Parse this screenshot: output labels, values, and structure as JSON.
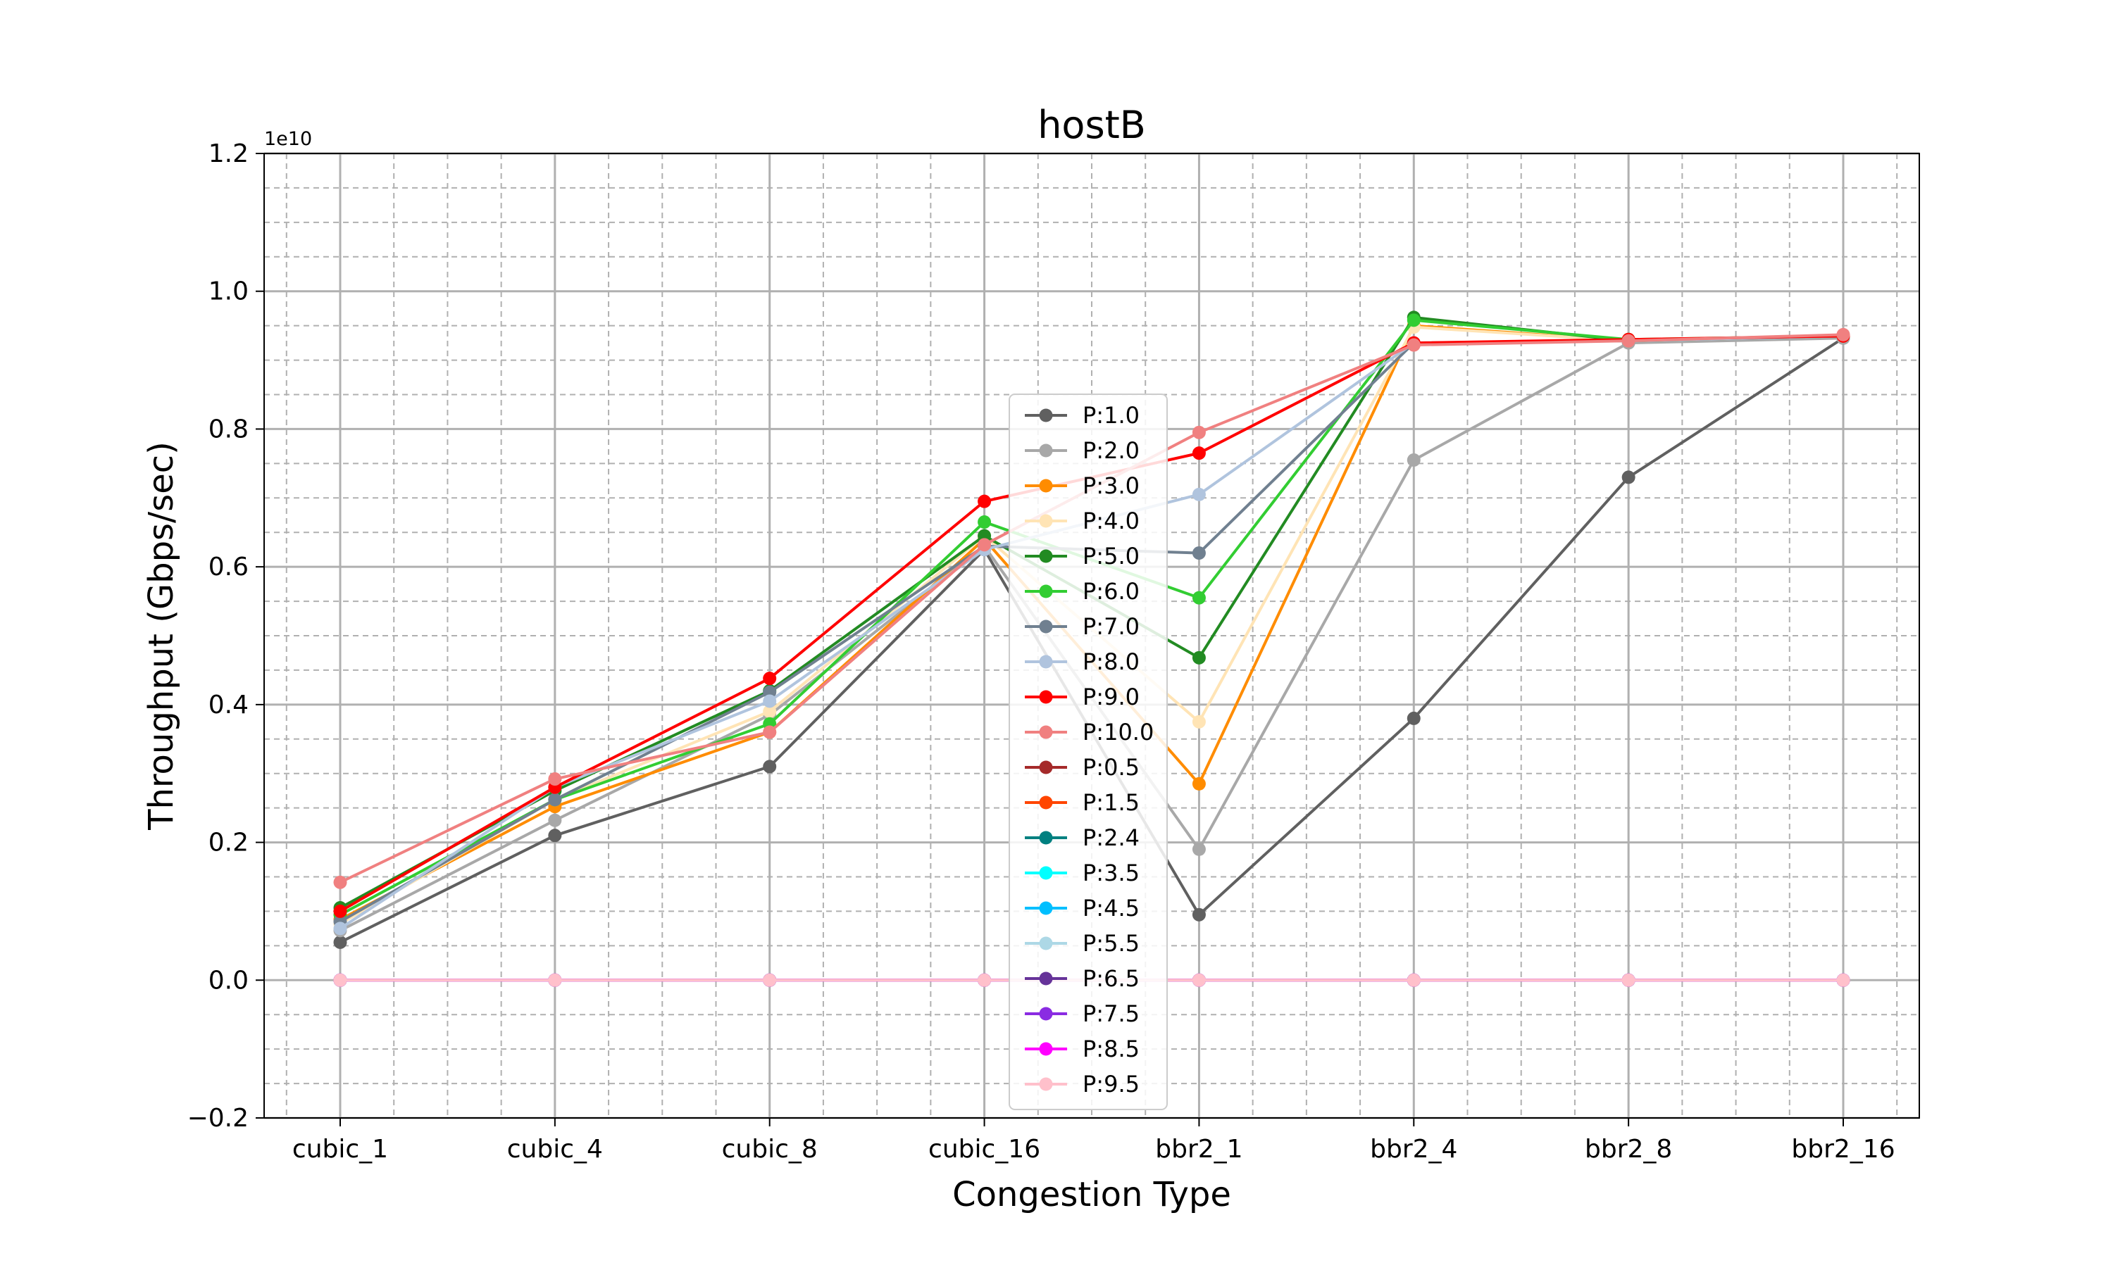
{
  "chart_data": {
    "type": "line",
    "title": "hostB",
    "xlabel": "Congestion Type",
    "ylabel": "Throughput (Gbps/sec)",
    "y_offset_label": "1e10",
    "categories": [
      "cubic_1",
      "cubic_4",
      "cubic_8",
      "cubic_16",
      "bbr2_1",
      "bbr2_4",
      "bbr2_8",
      "bbr2_16"
    ],
    "ylim": [
      -0.2,
      1.2
    ],
    "yticks": [
      -0.2,
      0.0,
      0.2,
      0.4,
      0.6,
      0.8,
      1.0,
      1.2
    ],
    "ytick_labels": [
      "−0.2",
      "0.0",
      "0.2",
      "0.4",
      "0.6",
      "0.8",
      "1.0",
      "1.2"
    ],
    "grid": "major and minor, dashed minor",
    "legend_position": "center",
    "series": [
      {
        "name": "P:1.0",
        "color": "#606060",
        "values": [
          0.055,
          0.21,
          0.31,
          0.625,
          0.095,
          0.38,
          0.73,
          0.932
        ]
      },
      {
        "name": "P:2.0",
        "color": "#a8a8a8",
        "values": [
          0.072,
          0.232,
          0.385,
          0.63,
          0.19,
          0.755,
          0.925,
          0.932
        ]
      },
      {
        "name": "P:3.0",
        "color": "#ff8c00",
        "values": [
          0.088,
          0.252,
          0.36,
          0.64,
          0.285,
          0.95,
          0.928,
          0.935
        ]
      },
      {
        "name": "P:4.0",
        "color": "#ffe4b5",
        "values": [
          0.082,
          0.262,
          0.39,
          0.645,
          0.375,
          0.948,
          0.928,
          0.935
        ]
      },
      {
        "name": "P:5.0",
        "color": "#228b22",
        "values": [
          0.105,
          0.275,
          0.42,
          0.645,
          0.468,
          0.962,
          0.928,
          0.935
        ]
      },
      {
        "name": "P:6.0",
        "color": "#32cd32",
        "values": [
          0.095,
          0.262,
          0.372,
          0.665,
          0.555,
          0.958,
          0.93,
          0.935
        ]
      },
      {
        "name": "P:7.0",
        "color": "#708090",
        "values": [
          0.085,
          0.262,
          0.418,
          0.63,
          0.62,
          0.925,
          0.928,
          0.935
        ]
      },
      {
        "name": "P:8.0",
        "color": "#b0c4de",
        "values": [
          0.075,
          0.28,
          0.405,
          0.625,
          0.705,
          0.925,
          0.928,
          0.935
        ]
      },
      {
        "name": "P:9.0",
        "color": "#ff0000",
        "values": [
          0.1,
          0.28,
          0.438,
          0.695,
          0.765,
          0.925,
          0.93,
          0.935
        ]
      },
      {
        "name": "P:10.0",
        "color": "#f08080",
        "values": [
          0.142,
          0.292,
          0.36,
          0.632,
          0.795,
          0.922,
          0.928,
          0.937
        ]
      },
      {
        "name": "P:0.5",
        "color": "#a52a2a",
        "values": [
          0,
          0,
          0,
          0,
          0,
          0,
          0,
          0
        ]
      },
      {
        "name": "P:1.5",
        "color": "#ff4500",
        "values": [
          0,
          0,
          0,
          0,
          0,
          0,
          0,
          0
        ]
      },
      {
        "name": "P:2.4",
        "color": "#008080",
        "values": [
          0,
          0,
          0,
          0,
          0,
          0,
          0,
          0
        ]
      },
      {
        "name": "P:3.5",
        "color": "#00ffff",
        "values": [
          0,
          0,
          0,
          0,
          0,
          0,
          0,
          0
        ]
      },
      {
        "name": "P:4.5",
        "color": "#00bfff",
        "values": [
          0,
          0,
          0,
          0,
          0,
          0,
          0,
          0
        ]
      },
      {
        "name": "P:5.5",
        "color": "#add8e6",
        "values": [
          0,
          0,
          0,
          0,
          0,
          0,
          0,
          0
        ]
      },
      {
        "name": "P:6.5",
        "color": "#663399",
        "values": [
          0,
          0,
          0,
          0,
          0,
          0,
          0,
          0
        ]
      },
      {
        "name": "P:7.5",
        "color": "#8a2be2",
        "values": [
          0,
          0,
          0,
          0,
          0,
          0,
          0,
          0
        ]
      },
      {
        "name": "P:8.5",
        "color": "#ff00ff",
        "values": [
          0,
          0,
          0,
          0,
          0,
          0,
          0,
          0
        ]
      },
      {
        "name": "P:9.5",
        "color": "#ffc0cb",
        "values": [
          0,
          0,
          0,
          0,
          0,
          0,
          0,
          0
        ]
      }
    ]
  }
}
